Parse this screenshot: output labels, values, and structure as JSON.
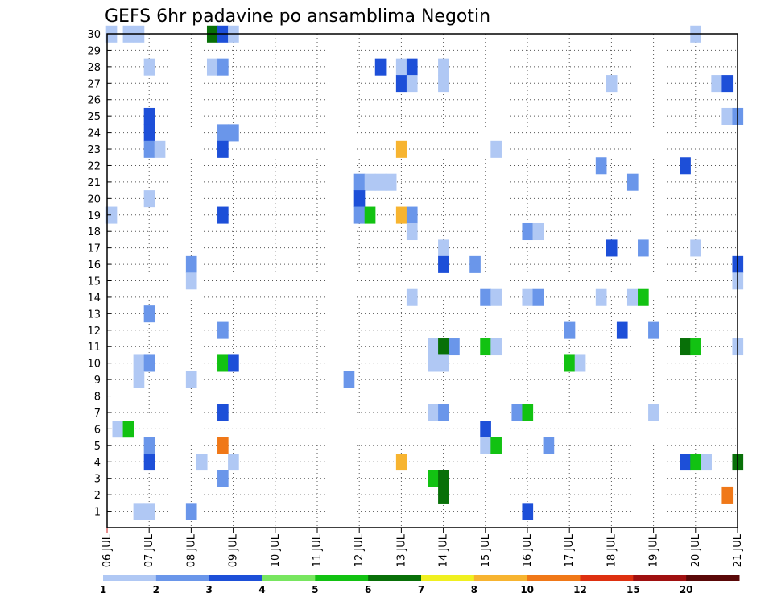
{
  "chart_data": {
    "type": "heatmap",
    "title": "GEFS 6hr padavine po ansamblima Negotin",
    "xlabel": "",
    "ylabel": "",
    "x_tick_labels": [
      "06 JUL",
      "07 JUL",
      "08 JUL",
      "09 JUL",
      "10 JUL",
      "11 JUL",
      "12 JUL",
      "13 JUL",
      "14 JUL",
      "15 JUL",
      "16 JUL",
      "17 JUL",
      "18 JUL",
      "19 JUL",
      "20 JUL",
      "21 JUL"
    ],
    "y_tick_labels": [
      "1",
      "2",
      "3",
      "4",
      "5",
      "6",
      "7",
      "8",
      "9",
      "10",
      "11",
      "12",
      "13",
      "14",
      "15",
      "16",
      "17",
      "18",
      "19",
      "20",
      "21",
      "22",
      "23",
      "24",
      "25",
      "26",
      "27",
      "28",
      "29",
      "30"
    ],
    "xlim": [
      0,
      15
    ],
    "ylim": [
      0,
      30
    ],
    "grid": true,
    "color_scale": {
      "labels": [
        "1",
        "2",
        "3",
        "4",
        "5",
        "6",
        "7",
        "8",
        "10",
        "12",
        "15",
        "20"
      ],
      "colors": [
        "#b0c8f4",
        "#6a96ea",
        "#1d4fd8",
        "#78e660",
        "#12c212",
        "#087008",
        "#f0f020",
        "#f7b430",
        "#f07818",
        "#de3010",
        "#a01010",
        "#5a0808"
      ]
    },
    "cells": [
      {
        "t": 0.1,
        "m": 30,
        "v": 1
      },
      {
        "t": 0.5,
        "m": 30,
        "v": 1
      },
      {
        "t": 0.75,
        "m": 30,
        "v": 1
      },
      {
        "t": 2.5,
        "m": 30,
        "v": 6
      },
      {
        "t": 2.75,
        "m": 30,
        "v": 3
      },
      {
        "t": 3.0,
        "m": 30,
        "v": 1
      },
      {
        "t": 14.0,
        "m": 30,
        "v": 1
      },
      {
        "t": 1.0,
        "m": 28,
        "v": 1
      },
      {
        "t": 2.5,
        "m": 28,
        "v": 1
      },
      {
        "t": 2.75,
        "m": 28,
        "v": 2
      },
      {
        "t": 6.5,
        "m": 28,
        "v": 3
      },
      {
        "t": 7.0,
        "m": 28,
        "v": 1
      },
      {
        "t": 7.25,
        "m": 28,
        "v": 3
      },
      {
        "t": 8.0,
        "m": 28,
        "v": 1
      },
      {
        "t": 7.0,
        "m": 27,
        "v": 3
      },
      {
        "t": 7.25,
        "m": 27,
        "v": 1
      },
      {
        "t": 8.0,
        "m": 27,
        "v": 1
      },
      {
        "t": 12.0,
        "m": 27,
        "v": 1
      },
      {
        "t": 14.5,
        "m": 27,
        "v": 1
      },
      {
        "t": 14.75,
        "m": 27,
        "v": 3
      },
      {
        "t": 1.0,
        "m": 25,
        "v": 3
      },
      {
        "t": 14.75,
        "m": 25,
        "v": 1
      },
      {
        "t": 15.0,
        "m": 25,
        "v": 2
      },
      {
        "t": 1.0,
        "m": 24,
        "v": 3
      },
      {
        "t": 2.75,
        "m": 24,
        "v": 2
      },
      {
        "t": 3.0,
        "m": 24,
        "v": 2
      },
      {
        "t": 1.0,
        "m": 23,
        "v": 2
      },
      {
        "t": 1.25,
        "m": 23,
        "v": 1
      },
      {
        "t": 2.75,
        "m": 23,
        "v": 3
      },
      {
        "t": 7.0,
        "m": 23,
        "v": 8
      },
      {
        "t": 9.25,
        "m": 23,
        "v": 1
      },
      {
        "t": 11.75,
        "m": 22,
        "v": 2
      },
      {
        "t": 13.75,
        "m": 22,
        "v": 3
      },
      {
        "t": 6.0,
        "m": 21,
        "v": 2
      },
      {
        "t": 6.25,
        "m": 21,
        "v": 1
      },
      {
        "t": 6.5,
        "m": 21,
        "v": 1
      },
      {
        "t": 6.75,
        "m": 21,
        "v": 1
      },
      {
        "t": 12.5,
        "m": 21,
        "v": 2
      },
      {
        "t": 1.0,
        "m": 20,
        "v": 1
      },
      {
        "t": 6.0,
        "m": 20,
        "v": 3
      },
      {
        "t": 0.1,
        "m": 19,
        "v": 1
      },
      {
        "t": 2.75,
        "m": 19,
        "v": 3
      },
      {
        "t": 6.0,
        "m": 19,
        "v": 2
      },
      {
        "t": 6.25,
        "m": 19,
        "v": 5
      },
      {
        "t": 7.0,
        "m": 19,
        "v": 8
      },
      {
        "t": 7.25,
        "m": 19,
        "v": 2
      },
      {
        "t": 7.25,
        "m": 18,
        "v": 1
      },
      {
        "t": 10.0,
        "m": 18,
        "v": 2
      },
      {
        "t": 10.25,
        "m": 18,
        "v": 1
      },
      {
        "t": 8.0,
        "m": 17,
        "v": 1
      },
      {
        "t": 12.0,
        "m": 17,
        "v": 3
      },
      {
        "t": 12.75,
        "m": 17,
        "v": 2
      },
      {
        "t": 14.0,
        "m": 17,
        "v": 1
      },
      {
        "t": 2.0,
        "m": 16,
        "v": 2
      },
      {
        "t": 8.0,
        "m": 16,
        "v": 3
      },
      {
        "t": 8.75,
        "m": 16,
        "v": 2
      },
      {
        "t": 15.0,
        "m": 16,
        "v": 3
      },
      {
        "t": 2.0,
        "m": 15,
        "v": 1
      },
      {
        "t": 15.0,
        "m": 15,
        "v": 1
      },
      {
        "t": 7.25,
        "m": 14,
        "v": 1
      },
      {
        "t": 9.0,
        "m": 14,
        "v": 2
      },
      {
        "t": 9.25,
        "m": 14,
        "v": 1
      },
      {
        "t": 10.0,
        "m": 14,
        "v": 1
      },
      {
        "t": 10.25,
        "m": 14,
        "v": 2
      },
      {
        "t": 11.75,
        "m": 14,
        "v": 1
      },
      {
        "t": 12.5,
        "m": 14,
        "v": 1
      },
      {
        "t": 12.75,
        "m": 14,
        "v": 5
      },
      {
        "t": 1.0,
        "m": 13,
        "v": 2
      },
      {
        "t": 2.75,
        "m": 12,
        "v": 2
      },
      {
        "t": 11.0,
        "m": 12,
        "v": 2
      },
      {
        "t": 12.25,
        "m": 12,
        "v": 3
      },
      {
        "t": 13.0,
        "m": 12,
        "v": 2
      },
      {
        "t": 7.75,
        "m": 11,
        "v": 1
      },
      {
        "t": 8.0,
        "m": 11,
        "v": 6
      },
      {
        "t": 8.25,
        "m": 11,
        "v": 2
      },
      {
        "t": 9.0,
        "m": 11,
        "v": 5
      },
      {
        "t": 9.25,
        "m": 11,
        "v": 1
      },
      {
        "t": 13.75,
        "m": 11,
        "v": 6
      },
      {
        "t": 14.0,
        "m": 11,
        "v": 5
      },
      {
        "t": 15.0,
        "m": 11,
        "v": 1
      },
      {
        "t": 0.75,
        "m": 10,
        "v": 1
      },
      {
        "t": 1.0,
        "m": 10,
        "v": 2
      },
      {
        "t": 2.75,
        "m": 10,
        "v": 5
      },
      {
        "t": 3.0,
        "m": 10,
        "v": 3
      },
      {
        "t": 7.75,
        "m": 10,
        "v": 1
      },
      {
        "t": 8.0,
        "m": 10,
        "v": 1
      },
      {
        "t": 11.0,
        "m": 10,
        "v": 5
      },
      {
        "t": 11.25,
        "m": 10,
        "v": 1
      },
      {
        "t": 0.75,
        "m": 9,
        "v": 1
      },
      {
        "t": 2.0,
        "m": 9,
        "v": 1
      },
      {
        "t": 5.75,
        "m": 9,
        "v": 2
      },
      {
        "t": 2.75,
        "m": 7,
        "v": 3
      },
      {
        "t": 7.75,
        "m": 7,
        "v": 1
      },
      {
        "t": 8.0,
        "m": 7,
        "v": 2
      },
      {
        "t": 9.75,
        "m": 7,
        "v": 2
      },
      {
        "t": 10.0,
        "m": 7,
        "v": 5
      },
      {
        "t": 13.0,
        "m": 7,
        "v": 1
      },
      {
        "t": 0.25,
        "m": 6,
        "v": 1
      },
      {
        "t": 0.5,
        "m": 6,
        "v": 5
      },
      {
        "t": 9.0,
        "m": 6,
        "v": 3
      },
      {
        "t": 1.0,
        "m": 5,
        "v": 2
      },
      {
        "t": 2.75,
        "m": 5,
        "v": 9
      },
      {
        "t": 9.0,
        "m": 5,
        "v": 1
      },
      {
        "t": 9.25,
        "m": 5,
        "v": 5
      },
      {
        "t": 10.5,
        "m": 5,
        "v": 2
      },
      {
        "t": 1.0,
        "m": 4,
        "v": 3
      },
      {
        "t": 2.25,
        "m": 4,
        "v": 1
      },
      {
        "t": 3.0,
        "m": 4,
        "v": 1
      },
      {
        "t": 7.0,
        "m": 4,
        "v": 8
      },
      {
        "t": 13.75,
        "m": 4,
        "v": 3
      },
      {
        "t": 14.0,
        "m": 4,
        "v": 5
      },
      {
        "t": 14.25,
        "m": 4,
        "v": 1
      },
      {
        "t": 15.0,
        "m": 4,
        "v": 6
      },
      {
        "t": 2.75,
        "m": 3,
        "v": 2
      },
      {
        "t": 7.75,
        "m": 3,
        "v": 5
      },
      {
        "t": 8.0,
        "m": 3,
        "v": 6
      },
      {
        "t": 8.0,
        "m": 2,
        "v": 6
      },
      {
        "t": 14.75,
        "m": 2,
        "v": 9
      },
      {
        "t": 0.75,
        "m": 1,
        "v": 1
      },
      {
        "t": 1.0,
        "m": 1,
        "v": 1
      },
      {
        "t": 2.0,
        "m": 1,
        "v": 2
      },
      {
        "t": 10.0,
        "m": 1,
        "v": 3
      }
    ]
  }
}
